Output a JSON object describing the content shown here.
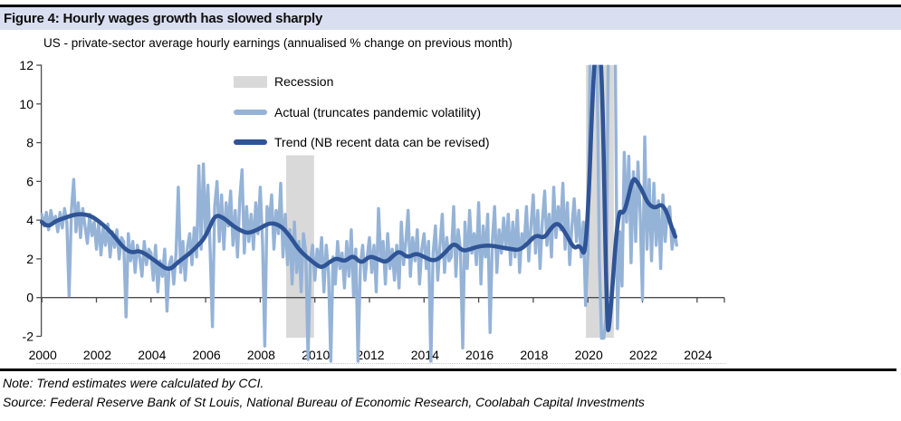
{
  "title_bar": {
    "label": "Figure 4: Hourly wages growth has slowed sharply"
  },
  "notes": {
    "note": "Note: Trend estimates were calculated by CCI.",
    "source": "Source: Federal Reserve Bank of St Louis, National Bureau of Economic Research, Coolabah Capital Investments"
  },
  "colors": {
    "actual": "#95b3d7",
    "trend": "#2f5496",
    "recession": "#d9d9d9",
    "title_band": "#d9def0",
    "axis": "#4d4d4d",
    "rule": "#000000"
  },
  "chart_data": {
    "type": "line",
    "title": "US - private-sector average hourly earnings (annualised % change on previous month)",
    "ylim": [
      -2,
      12
    ],
    "y_ticks": [
      12,
      10,
      8,
      6,
      4,
      2,
      0,
      -2
    ],
    "x_axis": {
      "start": 2000,
      "end": 2025,
      "label_years": [
        2000,
        2002,
        2004,
        2006,
        2008,
        2010,
        2012,
        2014,
        2016,
        2018,
        2020,
        2022,
        2024
      ],
      "end_tick": true
    },
    "clip_top_value": 12,
    "grid": false,
    "legend_position": "top-inside",
    "legend": [
      {
        "key": "recession",
        "type": "area",
        "label": "Recession",
        "color": "#d9d9d9"
      },
      {
        "key": "actual",
        "type": "line",
        "label": "Actual (truncates pandemic volatility)",
        "color": "#95b3d7"
      },
      {
        "key": "trend",
        "type": "line",
        "label": "Trend (NB recent data can be revised)",
        "color": "#2f5496"
      }
    ],
    "recessions": [
      {
        "start": 2008.95,
        "end": 2009.97,
        "top": 7.35
      },
      {
        "start": 2019.93,
        "end": 2020.95,
        "top": 12
      }
    ],
    "series": [
      {
        "name": "Actual",
        "start_year": 2000,
        "points_per_year": 12,
        "values": [
          4.3,
          3.7,
          4.4,
          3.5,
          4.5,
          3.8,
          4.2,
          3.4,
          4.4,
          3.6,
          4.6,
          3.9,
          0.1,
          4.5,
          6.1,
          3.4,
          4.9,
          3.1,
          4.6,
          3.7,
          2.8,
          4.3,
          3.2,
          3.9,
          2.5,
          3.9,
          2.2,
          3.6,
          2.7,
          3.8,
          2.1,
          3.4,
          2.6,
          3.5,
          2.0,
          3.1,
          2.9,
          -1.0,
          3.3,
          1.9,
          2.9,
          1.3,
          2.7,
          2.1,
          1.1,
          2.9,
          1.7,
          2.5,
          2.3,
          0.9,
          2.7,
          0.3,
          1.9,
          1.1,
          2.5,
          -0.7,
          1.7,
          2.1,
          0.7,
          2.3,
          5.7,
          1.3,
          2.9,
          0.9,
          2.6,
          3.3,
          1.7,
          3.6,
          2.1,
          6.8,
          2.5,
          6.9,
          3.2,
          5.8,
          2.4,
          -1.5,
          4.7,
          6.0,
          2.9,
          5.3,
          2.5,
          4.9,
          3.7,
          5.5,
          2.7,
          4.5,
          2.1,
          5.1,
          6.6,
          2.3,
          4.7,
          2.9,
          4.3,
          2.5,
          4.9,
          3.3,
          5.7,
          2.9,
          -2.5,
          4.7,
          3.9,
          5.3,
          2.5,
          4.5,
          3.3,
          5.9,
          2.1,
          4.3,
          1.7,
          3.5,
          0.7,
          3.9,
          1.3,
          2.9,
          0.3,
          3.3,
          2.3,
          -3.2,
          1.9,
          2.7,
          0.9,
          2.5,
          1.7,
          3.1,
          0.3,
          2.7,
          1.3,
          -3.3,
          2.1,
          0.7,
          2.9,
          1.5,
          2.3,
          0.5,
          2.9,
          1.1,
          3.5,
          0.1,
          2.5,
          -3.3,
          1.7,
          2.7,
          0.9,
          2.1,
          3.1,
          1.3,
          2.7,
          0.3,
          4.6,
          1.9,
          2.9,
          0.7,
          3.3,
          1.5,
          2.5,
          0.9,
          2.7,
          0.5,
          3.9,
          1.7,
          2.9,
          4.5,
          1.1,
          3.1,
          1.9,
          3.5,
          0.7,
          2.5,
          3.3,
          1.5,
          2.9,
          -3.4,
          2.3,
          3.7,
          0.9,
          2.7,
          4.3,
          1.3,
          3.1,
          1.9,
          2.1,
          4.7,
          1.1,
          3.5,
          2.5,
          -2.6,
          3.9,
          1.5,
          4.5,
          2.3,
          3.3,
          1.7,
          4.9,
          0.7,
          3.7,
          2.1,
          4.3,
          -1.8,
          2.9,
          4.7,
          1.3,
          3.5,
          2.3,
          4.1,
          2.5,
          4.3,
          1.7,
          3.9,
          2.1,
          4.5,
          1.3,
          3.3,
          2.7,
          4.7,
          1.9,
          3.7,
          5.3,
          2.3,
          4.5,
          1.5,
          3.9,
          5.5,
          2.7,
          4.3,
          2.1,
          5.7,
          3.1,
          4.7,
          3.5,
          5.9,
          2.5,
          4.9,
          1.7,
          3.7,
          5.1,
          2.9,
          4.5,
          2.1,
          3.9,
          -0.4,
          2.3,
          13,
          13,
          13,
          13,
          2.0,
          -2.1,
          -2.1,
          -1.0,
          13,
          13,
          13,
          13,
          -1.6,
          3.4,
          0.6,
          7.5,
          3.9,
          7.3,
          1.8,
          6.5,
          2.9,
          7.0,
          4.3,
          -0.1,
          8.3,
          2.5,
          6.1,
          1.9,
          5.9,
          2.7,
          5.0,
          1.5,
          5.3,
          2.9,
          4.5,
          4.7,
          2.5,
          3.5,
          2.7
        ]
      },
      {
        "name": "Trend",
        "points": [
          [
            2000.0,
            3.9
          ],
          [
            2000.2,
            3.62
          ],
          [
            2000.5,
            3.95
          ],
          [
            2000.9,
            4.15
          ],
          [
            2001.3,
            4.33
          ],
          [
            2001.7,
            4.27
          ],
          [
            2002.0,
            4.05
          ],
          [
            2002.5,
            3.45
          ],
          [
            2003.0,
            2.55
          ],
          [
            2003.3,
            2.3
          ],
          [
            2003.6,
            2.45
          ],
          [
            2004.2,
            1.85
          ],
          [
            2004.65,
            1.38
          ],
          [
            2005.0,
            1.85
          ],
          [
            2005.35,
            2.2
          ],
          [
            2005.65,
            2.6
          ],
          [
            2005.95,
            3.05
          ],
          [
            2006.15,
            3.65
          ],
          [
            2006.37,
            4.3
          ],
          [
            2006.7,
            4.08
          ],
          [
            2007.0,
            3.7
          ],
          [
            2007.3,
            3.45
          ],
          [
            2007.55,
            3.32
          ],
          [
            2007.9,
            3.5
          ],
          [
            2008.25,
            3.8
          ],
          [
            2008.5,
            3.85
          ],
          [
            2008.8,
            3.65
          ],
          [
            2009.1,
            3.15
          ],
          [
            2009.4,
            2.5
          ],
          [
            2009.7,
            2.1
          ],
          [
            2010.0,
            1.75
          ],
          [
            2010.25,
            1.52
          ],
          [
            2010.55,
            1.85
          ],
          [
            2010.8,
            2.05
          ],
          [
            2011.1,
            1.85
          ],
          [
            2011.4,
            2.2
          ],
          [
            2011.7,
            1.75
          ],
          [
            2012.0,
            2.15
          ],
          [
            2012.3,
            2.0
          ],
          [
            2012.6,
            1.8
          ],
          [
            2012.9,
            2.2
          ],
          [
            2013.1,
            2.4
          ],
          [
            2013.4,
            2.05
          ],
          [
            2013.7,
            2.3
          ],
          [
            2014.0,
            2.1
          ],
          [
            2014.4,
            1.85
          ],
          [
            2014.8,
            2.35
          ],
          [
            2015.1,
            2.85
          ],
          [
            2015.4,
            2.4
          ],
          [
            2015.7,
            2.5
          ],
          [
            2016.0,
            2.65
          ],
          [
            2016.4,
            2.7
          ],
          [
            2016.8,
            2.6
          ],
          [
            2017.2,
            2.5
          ],
          [
            2017.5,
            2.45
          ],
          [
            2017.8,
            2.8
          ],
          [
            2018.1,
            3.25
          ],
          [
            2018.4,
            3.05
          ],
          [
            2018.65,
            3.6
          ],
          [
            2018.9,
            3.9
          ],
          [
            2019.2,
            3.3
          ],
          [
            2019.5,
            2.5
          ],
          [
            2019.7,
            2.75
          ],
          [
            2019.95,
            1.95
          ],
          [
            2020.25,
            13.5
          ],
          [
            2020.5,
            13.5
          ],
          [
            2020.7,
            -1.85
          ],
          [
            2020.8,
            -1.5
          ],
          [
            2021.1,
            4.55
          ],
          [
            2021.3,
            4.3
          ],
          [
            2021.45,
            5.0
          ],
          [
            2021.65,
            6.2
          ],
          [
            2021.8,
            6.0
          ],
          [
            2022.0,
            5.5
          ],
          [
            2022.2,
            4.85
          ],
          [
            2022.45,
            4.6
          ],
          [
            2022.7,
            4.85
          ],
          [
            2022.9,
            4.4
          ],
          [
            2023.05,
            3.7
          ],
          [
            2023.2,
            3.15
          ]
        ]
      }
    ]
  }
}
